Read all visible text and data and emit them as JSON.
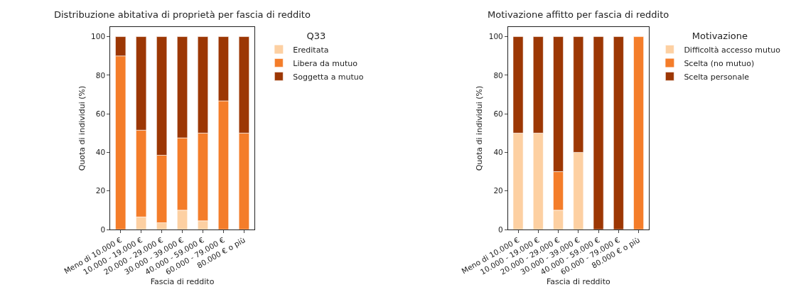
{
  "chart_data": [
    {
      "type": "bar",
      "title": "Distribuzione abitativa di proprietà per fascia di reddito",
      "xlabel": "Fascia di reddito",
      "ylabel": "Quota di individui (%)",
      "legend_title": "Q33",
      "stacked": true,
      "legend": "top right",
      "categories": [
        "Meno di 10.000 €",
        "10.000 - 19.000 €",
        "20.000 - 29.000 €",
        "30.000 - 39.000 €",
        "40.000 - 59.000 €",
        "60.000 - 79.000 €",
        "80.000 € o più"
      ],
      "series": [
        {
          "name": "Ereditata",
          "color": "#fdd0a2",
          "values": [
            0,
            6.5,
            3.5,
            10,
            4.5,
            0,
            0
          ]
        },
        {
          "name": "Libera da mutuo",
          "color": "#f47d2a",
          "values": [
            90,
            45,
            35,
            37.5,
            45.5,
            66.7,
            50
          ]
        },
        {
          "name": "Soggetta a mutuo",
          "color": "#9c3704",
          "values": [
            10,
            48.5,
            61.5,
            52.5,
            50,
            33.3,
            50
          ]
        }
      ],
      "ylim": [
        0,
        105
      ],
      "yticks": [
        0,
        20,
        40,
        60,
        80,
        100
      ]
    },
    {
      "type": "bar",
      "title": "Motivazione affitto per fascia di reddito",
      "xlabel": "Fascia di reddito",
      "ylabel": "Quota di individui (%)",
      "legend_title": "Motivazione",
      "stacked": true,
      "legend": "top right",
      "categories": [
        "Meno di 10.000 €",
        "10.000 - 19.000 €",
        "20.000 - 29.000 €",
        "30.000 - 39.000 €",
        "40.000 - 59.000 €",
        "60.000 - 79.000 €",
        "80.000 € o più"
      ],
      "series": [
        {
          "name": "Difficoltà accesso mutuo",
          "color": "#fdd0a2",
          "values": [
            50,
            50,
            10,
            40,
            0,
            0,
            0
          ]
        },
        {
          "name": "Scelta (no mutuo)",
          "color": "#f47d2a",
          "values": [
            0,
            0,
            20,
            0,
            0,
            0,
            100
          ]
        },
        {
          "name": "Scelta personale",
          "color": "#9c3704",
          "values": [
            50,
            50,
            70,
            60,
            100,
            100,
            0
          ]
        }
      ],
      "ylim": [
        0,
        105
      ],
      "yticks": [
        0,
        20,
        40,
        60,
        80,
        100
      ]
    }
  ]
}
